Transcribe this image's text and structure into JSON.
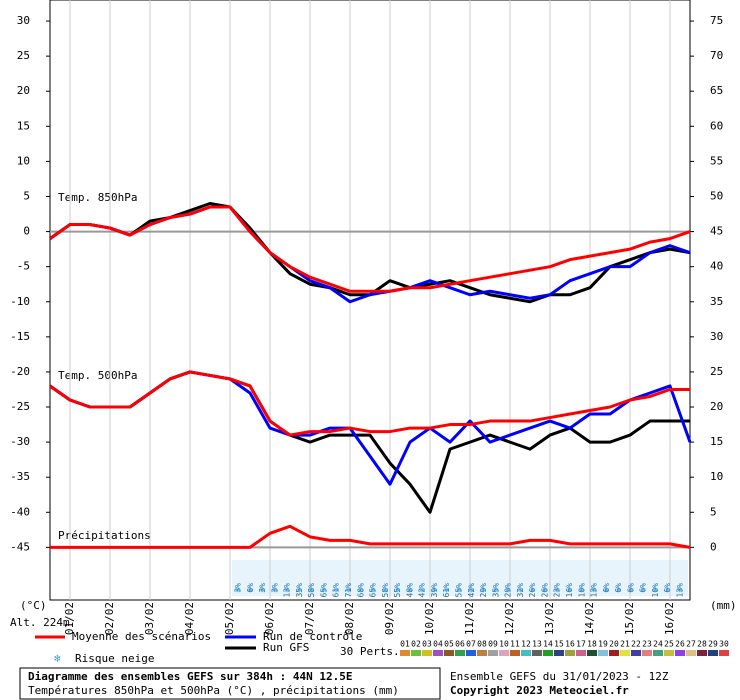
{
  "chart_data": {
    "type": "line",
    "y_label": "(°C)",
    "y2_label": "(mm)",
    "altitude": "Alt. 224m",
    "annotations": [
      "Temp. 850hPa",
      "Temp. 500hPa",
      "Précipitations"
    ],
    "xlim": [
      0,
      384
    ],
    "xticks": [
      {
        "value": 12,
        "label": "01/02"
      },
      {
        "value": 36,
        "label": "02/02"
      },
      {
        "value": 60,
        "label": "03/02"
      },
      {
        "value": 84,
        "label": "04/02"
      },
      {
        "value": 108,
        "label": "05/02"
      },
      {
        "value": 132,
        "label": "06/02"
      },
      {
        "value": 156,
        "label": "07/02"
      },
      {
        "value": 180,
        "label": "08/02"
      },
      {
        "value": 204,
        "label": "09/02"
      },
      {
        "value": 228,
        "label": "10/02"
      },
      {
        "value": 252,
        "label": "11/02"
      },
      {
        "value": 276,
        "label": "12/02"
      },
      {
        "value": 300,
        "label": "13/02"
      },
      {
        "value": 324,
        "label": "14/02"
      },
      {
        "value": 348,
        "label": "15/02"
      },
      {
        "value": 372,
        "label": "16/02"
      }
    ],
    "ylim": [
      -52.5,
      33
    ],
    "yticks": [
      30,
      25,
      20,
      15,
      10,
      5,
      0,
      -5,
      -10,
      -15,
      -20,
      -25,
      -30,
      -35,
      -40,
      -45
    ],
    "y2lim": [
      -7.5,
      78
    ],
    "y2ticks": [
      75,
      70,
      65,
      60,
      55,
      50,
      45,
      40,
      35,
      30,
      25,
      20,
      15,
      10,
      5,
      0
    ],
    "reference_lines": [
      0,
      -45
    ],
    "x": [
      0,
      12,
      24,
      36,
      48,
      60,
      72,
      84,
      96,
      108,
      120,
      132,
      144,
      156,
      168,
      180,
      192,
      204,
      216,
      228,
      240,
      252,
      264,
      276,
      288,
      300,
      312,
      324,
      336,
      348,
      360,
      372,
      384
    ],
    "series": [
      {
        "name": "Run GFS",
        "color": "#000000",
        "values": [
          -1,
          1,
          1,
          0.5,
          -0.5,
          1.5,
          2,
          3,
          4,
          3.5,
          0.5,
          -3,
          -6,
          -7.5,
          -8,
          -9,
          -9,
          -7,
          -8,
          -7.5,
          -7,
          -8,
          -9,
          -9.5,
          -10,
          -9,
          -9,
          -8,
          -5,
          -4,
          -3,
          -2.5,
          -3
        ]
      },
      {
        "name": "Run de contrôle",
        "color": "#0000ff",
        "values": [
          -1,
          1,
          1,
          0.5,
          -0.5,
          1,
          2,
          2.5,
          3.5,
          3.5,
          0,
          -3,
          -5,
          -7,
          -8,
          -10,
          -9,
          -8.5,
          -8,
          -7,
          -8,
          -9,
          -8.5,
          -9,
          -9.5,
          -9,
          -7,
          -6,
          -5,
          -5,
          -3,
          -2,
          -3
        ]
      },
      {
        "name": "Moyenne des scénarios",
        "color": "#ff0000",
        "values": [
          -1,
          1,
          1,
          0.5,
          -0.5,
          1,
          2,
          2.5,
          3.5,
          3.5,
          0,
          -3,
          -5,
          -6.5,
          -7.5,
          -8.5,
          -8.5,
          -8.5,
          -8,
          -8,
          -7.5,
          -7,
          -6.5,
          -6,
          -5.5,
          -5,
          -4,
          -3.5,
          -3,
          -2.5,
          -1.5,
          -1,
          0
        ]
      },
      {
        "name": "Run GFS",
        "color": "#000000",
        "values": [
          -22,
          -24,
          -25,
          -25,
          -25,
          -23,
          -21,
          -20,
          -20.5,
          -21,
          -22,
          -27,
          -29,
          -30,
          -29,
          -29,
          -29,
          -33,
          -36,
          -40,
          -31,
          -30,
          -29,
          -30,
          -31,
          -29,
          -28,
          -30,
          -30,
          -29,
          -27,
          -27,
          -27
        ]
      },
      {
        "name": "Run de contrôle",
        "color": "#0000ff",
        "values": [
          -22,
          -24,
          -25,
          -25,
          -25,
          -23,
          -21,
          -20,
          -20.5,
          -21,
          -23,
          -28,
          -29,
          -29,
          -28,
          -28,
          -32,
          -36,
          -30,
          -28,
          -30,
          -27,
          -30,
          -29,
          -28,
          -27,
          -28,
          -26,
          -26,
          -24,
          -23,
          -22,
          -30
        ]
      },
      {
        "name": "Moyenne des scénarios",
        "color": "#ff0000",
        "values": [
          -22,
          -24,
          -25,
          -25,
          -25,
          -23,
          -21,
          -20,
          -20.5,
          -21,
          -22,
          -27,
          -29,
          -28.5,
          -28.5,
          -28,
          -28.5,
          -28.5,
          -28,
          -28,
          -27.5,
          -27.5,
          -27,
          -27,
          -27,
          -26.5,
          -26,
          -25.5,
          -25,
          -24,
          -23.5,
          -22.5,
          -22.5
        ]
      },
      {
        "name": "Moyenne des scénarios",
        "color": "#ff0000",
        "axis": "y2",
        "values": [
          0,
          0,
          0,
          0,
          0,
          0,
          0,
          0,
          0,
          0,
          0,
          2,
          3,
          1.5,
          1,
          1,
          0.5,
          0.5,
          0.5,
          0.5,
          0.5,
          0.5,
          0.5,
          0.5,
          1,
          1,
          0.5,
          0.5,
          0.5,
          0.5,
          0.5,
          0.5,
          0
        ]
      }
    ],
    "snow_risk": {
      "name": "Risque neige",
      "labels": [
        "3%",
        "6%",
        "3%",
        "3%",
        "13%",
        "35%",
        "58%",
        "65%",
        "61%",
        "71%",
        "68%",
        "65%",
        "58%",
        "55%",
        "48%",
        "42%",
        "39%",
        "61%",
        "55%",
        "42%",
        "29%",
        "35%",
        "29%",
        "32%",
        "26%",
        "26%",
        "23%",
        "16%",
        "10%",
        "13%",
        "6%",
        "6%",
        "6%",
        "6%",
        "10%",
        "6%",
        "13%"
      ]
    },
    "perturbations": {
      "name": "30 Perts.",
      "ids": [
        "01",
        "02",
        "03",
        "04",
        "05",
        "06",
        "07",
        "08",
        "09",
        "10",
        "11",
        "12",
        "13",
        "14",
        "15",
        "16",
        "17",
        "18",
        "19",
        "20",
        "21",
        "22",
        "23",
        "24",
        "25",
        "26",
        "27",
        "28",
        "29",
        "30"
      ],
      "colors": [
        "#e08a30",
        "#6fbf3f",
        "#d0c020",
        "#a050c0",
        "#8a5a20",
        "#30a050",
        "#2060e0",
        "#c08040",
        "#a0a0a0",
        "#e0a0c0",
        "#c06020",
        "#40c0c0",
        "#606060",
        "#20a020",
        "#304080",
        "#a0a040",
        "#d06090",
        "#205030",
        "#80c0e0",
        "#a02020",
        "#e0e040",
        "#4040a0",
        "#e08080",
        "#40a080",
        "#c0c040",
        "#9040e0",
        "#e0c080",
        "#802040",
        "#204080",
        "#e04040"
      ]
    },
    "footer": {
      "title": "Diagramme des ensembles GEFS sur 384h : 44N 12.5E",
      "subtitle": "Températures 850hPa et 500hPa (°C) , précipitations (mm)",
      "run": "Ensemble GEFS du 31/01/2023 - 12Z",
      "copyright": "Copyright 2023 Meteociel.fr"
    }
  }
}
